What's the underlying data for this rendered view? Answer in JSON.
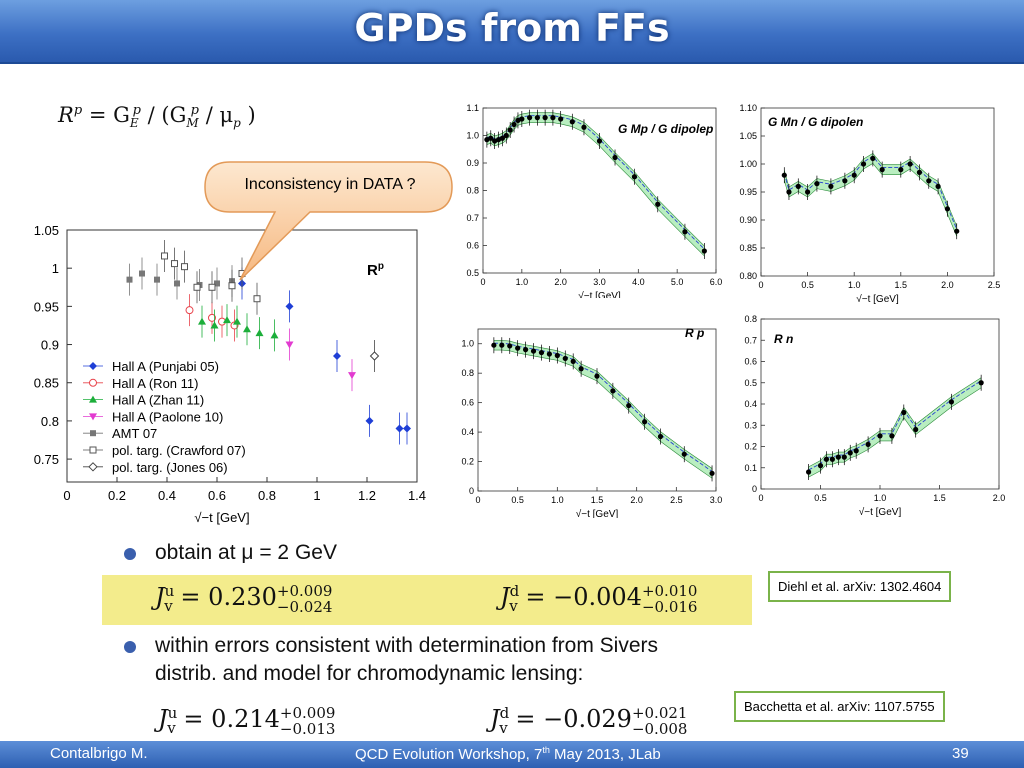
{
  "slide": {
    "title": "GPDs from FFs",
    "footer_left": "Contalbrigo M.",
    "footer_center_a": "QCD Evolution Workshop, 7",
    "footer_center_sup": "th",
    "footer_center_b": " May 2013, JLab",
    "page_number": "39"
  },
  "formula_rp": {
    "R": "R",
    "p1": "p",
    "eq": "= G",
    "E": "E",
    "p2": "p",
    "slash": "/ (G",
    "M": "M",
    "p3": "p",
    "slash2": "/ μ",
    "mu_sub": "p",
    "close": ")"
  },
  "callout": "Inconsistency in DATA ?",
  "bullets": [
    "obtain at μ = 2 GeV",
    "within errors consistent with determination from Sivers",
    "distrib. and model for chromodynamic lensing:"
  ],
  "eqs": {
    "ju1_val": "0.230",
    "ju1_up": "+0.009",
    "ju1_dn": "−0.024",
    "jd1_val": "−0.004",
    "jd1_up": "+0.010",
    "jd1_dn": "−0.016",
    "ju2_val": "0.214",
    "ju2_up": "+0.009",
    "ju2_dn": "−0.013",
    "jd2_val": "−0.029",
    "jd2_up": "+0.021",
    "jd2_dn": "−0.008",
    "J": "J",
    "v": "v",
    "u": "u",
    "d": "d",
    "eqs": "="
  },
  "refs": {
    "diehl": "Diehl et al. arXiv: 1302.4604",
    "bacchetta": "Bacchetta et al. arXiv: 1107.5755"
  },
  "chart_data": [
    {
      "type": "scatter",
      "title": "R^p",
      "xlabel": "√−t  [GeV]",
      "xlim": [
        0,
        1.4
      ],
      "ylim": [
        0.72,
        1.05
      ],
      "xticks": [
        "0",
        "0.2",
        "0.4",
        "0.6",
        "0.8",
        "1",
        "1.2",
        "1.4"
      ],
      "yticks": [
        "1.05",
        "1",
        "0.95",
        "0.9",
        "0.85",
        "0.8",
        "0.75"
      ],
      "legend_position": "bottom-left",
      "series": [
        {
          "name": "Hall A (Punjabi 05)",
          "color": "#1f3fd6",
          "marker": "diamond",
          "x": [
            0.7,
            0.89,
            1.08,
            1.21,
            1.33,
            1.36
          ],
          "y": [
            0.98,
            0.95,
            0.885,
            0.8,
            0.79,
            0.79
          ]
        },
        {
          "name": "Hall A (Ron 11)",
          "color": "#e8434b",
          "marker": "circle-open",
          "x": [
            0.49,
            0.58,
            0.62,
            0.67
          ],
          "y": [
            0.945,
            0.935,
            0.93,
            0.925
          ]
        },
        {
          "name": "Hall A (Zhan 11)",
          "color": "#1cae3a",
          "marker": "triangle",
          "x": [
            0.54,
            0.59,
            0.64,
            0.68,
            0.72,
            0.77,
            0.83
          ],
          "y": [
            0.93,
            0.925,
            0.932,
            0.93,
            0.92,
            0.915,
            0.912
          ]
        },
        {
          "name": "Hall A (Paolone 10)",
          "color": "#e23bd0",
          "marker": "triangle-down",
          "x": [
            0.89,
            1.14
          ],
          "y": [
            0.9,
            0.86
          ]
        },
        {
          "name": "AMT 07",
          "color": "#777777",
          "marker": "square",
          "x": [
            0.25,
            0.3,
            0.36,
            0.44,
            0.53,
            0.6,
            0.66
          ],
          "y": [
            0.985,
            0.993,
            0.985,
            0.98,
            0.978,
            0.98,
            0.983
          ]
        },
        {
          "name": "pol. targ. (Crawford 07)",
          "color": "#555555",
          "marker": "square-open",
          "x": [
            0.39,
            0.43,
            0.47,
            0.52,
            0.58,
            0.66,
            0.7,
            0.76
          ],
          "y": [
            1.016,
            1.006,
            1.002,
            0.975,
            0.975,
            0.977,
            0.993,
            0.96
          ]
        },
        {
          "name": "pol. targ. (Jones 06)",
          "color": "#444444",
          "marker": "diamond-open",
          "x": [
            1.23
          ],
          "y": [
            0.885
          ]
        }
      ]
    },
    {
      "type": "scatter",
      "title": "G_M^p / G_dipole^p",
      "xlabel": "√−t  [GeV]",
      "xlim": [
        0,
        6
      ],
      "ylim": [
        0.5,
        1.1
      ],
      "xticks": [
        "0",
        "1.0",
        "2.0",
        "3.0",
        "4.0",
        "5.0",
        "6.0"
      ],
      "yticks": [
        "1.1",
        "1.0",
        "0.9",
        "0.8",
        "0.7",
        "0.6",
        "0.5"
      ],
      "points_x": [
        0.1,
        0.2,
        0.3,
        0.4,
        0.5,
        0.6,
        0.7,
        0.8,
        0.9,
        1.0,
        1.2,
        1.4,
        1.6,
        1.8,
        2.0,
        2.3,
        2.6,
        3.0,
        3.4,
        3.9,
        4.5,
        5.2,
        5.7
      ],
      "points_y": [
        0.985,
        0.99,
        0.98,
        0.985,
        0.99,
        1.0,
        1.02,
        1.04,
        1.055,
        1.06,
        1.065,
        1.065,
        1.065,
        1.065,
        1.06,
        1.05,
        1.03,
        0.98,
        0.92,
        0.85,
        0.75,
        0.65,
        0.58
      ]
    },
    {
      "type": "scatter",
      "title": "G_M^n / G_dipole^n",
      "xlabel": "√−t  [GeV]",
      "xlim": [
        0,
        2.5
      ],
      "ylim": [
        0.8,
        1.1
      ],
      "xticks": [
        "0",
        "0.5",
        "1.0",
        "1.5",
        "2.0",
        "2.5"
      ],
      "yticks": [
        "1.10",
        "1.05",
        "1.00",
        "0.95",
        "0.90",
        "0.85",
        "0.80"
      ],
      "points_x": [
        0.25,
        0.3,
        0.4,
        0.5,
        0.6,
        0.75,
        0.9,
        1.0,
        1.1,
        1.2,
        1.3,
        1.5,
        1.6,
        1.7,
        1.8,
        1.9,
        2.0,
        2.1
      ],
      "points_y": [
        0.98,
        0.95,
        0.96,
        0.95,
        0.965,
        0.96,
        0.97,
        0.98,
        1.0,
        1.01,
        0.99,
        0.99,
        1.0,
        0.985,
        0.97,
        0.96,
        0.92,
        0.88
      ]
    },
    {
      "type": "scatter",
      "title": "R_p",
      "xlabel": "√−t  [GeV]",
      "xlim": [
        0,
        3.0
      ],
      "ylim": [
        0,
        1.1
      ],
      "xticks": [
        "0",
        "0.5",
        "1.0",
        "1.5",
        "2.0",
        "2.5",
        "3.0"
      ],
      "yticks": [
        "1.0",
        "0.8",
        "0.6",
        "0.4",
        "0.2",
        "0"
      ],
      "points_x": [
        0.2,
        0.3,
        0.4,
        0.5,
        0.6,
        0.7,
        0.8,
        0.9,
        1.0,
        1.1,
        1.2,
        1.3,
        1.5,
        1.7,
        1.9,
        2.1,
        2.3,
        2.6,
        2.95
      ],
      "points_y": [
        0.99,
        0.99,
        0.985,
        0.97,
        0.96,
        0.95,
        0.94,
        0.93,
        0.92,
        0.9,
        0.88,
        0.83,
        0.78,
        0.68,
        0.58,
        0.47,
        0.37,
        0.25,
        0.12
      ]
    },
    {
      "type": "scatter",
      "title": "R_n",
      "xlabel": "√−t  [GeV]",
      "xlim": [
        0,
        2.0
      ],
      "ylim": [
        0,
        0.8
      ],
      "xticks": [
        "0",
        "0.5",
        "1.0",
        "1.5",
        "2.0"
      ],
      "yticks": [
        "0.8",
        "0.7",
        "0.6",
        "0.5",
        "0.4",
        "0.3",
        "0.2",
        "0.1",
        "0"
      ],
      "points_x": [
        0.4,
        0.5,
        0.55,
        0.6,
        0.65,
        0.7,
        0.75,
        0.8,
        0.9,
        1.0,
        1.1,
        1.2,
        1.3,
        1.6,
        1.85
      ],
      "points_y": [
        0.08,
        0.11,
        0.14,
        0.14,
        0.15,
        0.15,
        0.17,
        0.18,
        0.21,
        0.25,
        0.25,
        0.36,
        0.28,
        0.41,
        0.5
      ]
    }
  ]
}
